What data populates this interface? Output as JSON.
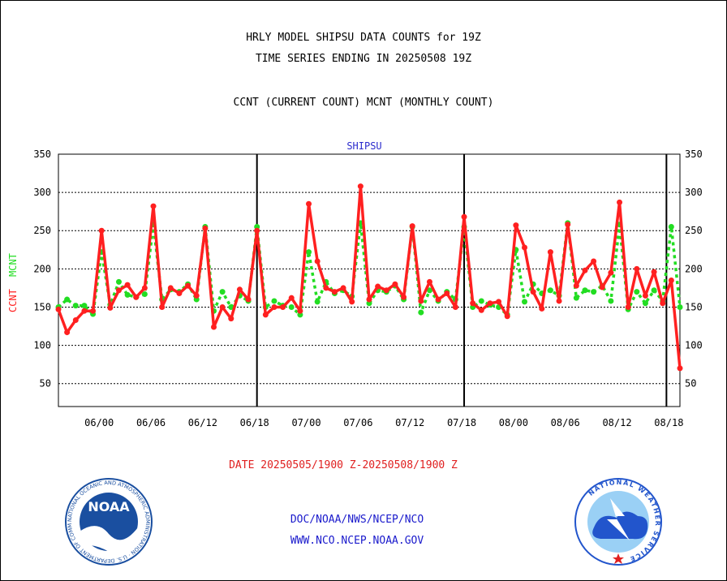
{
  "header": {
    "title_line1": "HRLY MODEL SHIPSU DATA COUNTS for 19Z",
    "title_line2": "TIME SERIES ENDING IN 20250508 19Z",
    "subtitle": "CCNT (CURRENT COUNT) MCNT (MONTHLY COUNT)"
  },
  "footer": {
    "date_range": "DATE 20250505/1900 Z-20250508/1900 Z",
    "link1": "DOC/NOAA/NWS/NCEP/NCO",
    "link2": "WWW.NCO.NCEP.NOAA.GOV",
    "noaa_logo_text": "NOAA",
    "noaa_ring_text": "NATIONAL OCEANIC AND ATMOSPHERIC ADMINISTRATION · U.S. DEPARTMENT OF COMMERCE",
    "nws_ring_text": "NATIONAL WEATHER SERVICE"
  },
  "colors": {
    "ccnt": "#ff2020",
    "mcnt": "#22dd22",
    "title": "#000000",
    "plot_title": "#2a2acc",
    "link": "#1a1acc",
    "noaa_blue": "#1a4fa0",
    "nws_blue": "#2255cc"
  },
  "chart_data": {
    "type": "line",
    "title": "SHIPSU",
    "ylabel_ccnt": "CCNT",
    "ylabel_mcnt": "MCNT",
    "ylim": [
      20,
      350
    ],
    "yticks": [
      50,
      100,
      150,
      200,
      250,
      300,
      350
    ],
    "xlim": [
      0,
      72
    ],
    "xtick_positions": [
      5,
      11,
      17,
      23,
      29,
      35,
      41,
      47,
      53,
      59,
      65,
      71
    ],
    "xtick_labels": [
      "06/00",
      "06/06",
      "06/12",
      "06/18",
      "07/00",
      "07/06",
      "07/12",
      "07/18",
      "08/00",
      "08/06",
      "08/12",
      "08/18"
    ],
    "day_boundaries": [
      23,
      47,
      71
    ],
    "grid": "horizontal dotted",
    "series": [
      {
        "name": "CCNT",
        "values": [
          147,
          117,
          133,
          145,
          145,
          250,
          149,
          172,
          179,
          163,
          175,
          282,
          150,
          175,
          168,
          178,
          165,
          253,
          124,
          150,
          135,
          173,
          160,
          250,
          140,
          150,
          150,
          162,
          145,
          285,
          210,
          175,
          170,
          175,
          157,
          308,
          160,
          177,
          172,
          180,
          163,
          256,
          158,
          183,
          160,
          168,
          150,
          268,
          155,
          146,
          155,
          157,
          138,
          257,
          228,
          170,
          148,
          222,
          158,
          258,
          178,
          198,
          210,
          176,
          195,
          287,
          150,
          200,
          165,
          196,
          155,
          185,
          70
        ]
      },
      {
        "name": "MCNT",
        "values": [
          150,
          160,
          152,
          152,
          141,
          222,
          153,
          183,
          166,
          163,
          167,
          258,
          160,
          173,
          170,
          180,
          160,
          255,
          145,
          170,
          150,
          165,
          158,
          255,
          150,
          158,
          152,
          150,
          140,
          222,
          157,
          183,
          168,
          172,
          164,
          260,
          155,
          172,
          170,
          178,
          160,
          255,
          143,
          172,
          158,
          170,
          160,
          255,
          150,
          158,
          153,
          150,
          140,
          225,
          157,
          180,
          168,
          172,
          165,
          260,
          162,
          172,
          170,
          178,
          158,
          258,
          147,
          170,
          155,
          172,
          158,
          255,
          150
        ]
      }
    ]
  }
}
